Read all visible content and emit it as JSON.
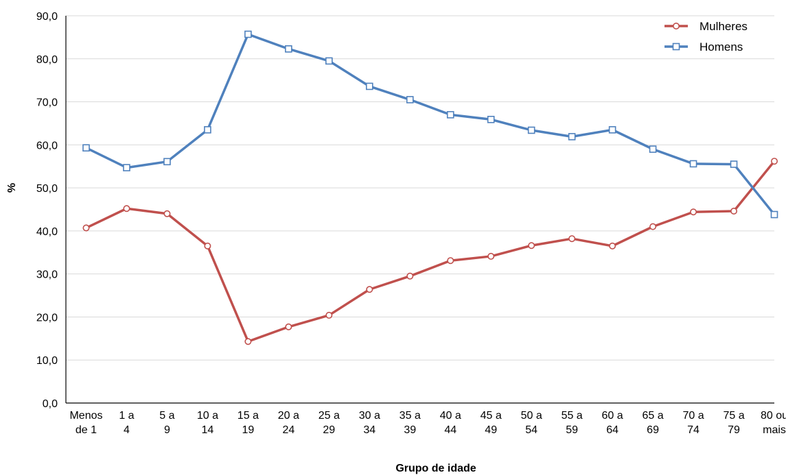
{
  "chart_data": {
    "type": "line",
    "title": "",
    "xlabel": "Grupo de idade",
    "ylabel": "%",
    "ylim": [
      0,
      90
    ],
    "yticks": [
      "0,0",
      "10,0",
      "20,0",
      "30,0",
      "40,0",
      "50,0",
      "60,0",
      "70,0",
      "80,0",
      "90,0"
    ],
    "grid": "horizontal",
    "legend_position": "top-right",
    "categories": [
      [
        "Menos",
        "de 1"
      ],
      [
        "1 a",
        "4"
      ],
      [
        "5 a",
        "9"
      ],
      [
        "10 a",
        "14"
      ],
      [
        "15 a",
        "19"
      ],
      [
        "20 a",
        "24"
      ],
      [
        "25 a",
        "29"
      ],
      [
        "30 a",
        "34"
      ],
      [
        "35 a",
        "39"
      ],
      [
        "40 a",
        "44"
      ],
      [
        "45 a",
        "49"
      ],
      [
        "50 a",
        "54"
      ],
      [
        "55 a",
        "59"
      ],
      [
        "60 a",
        "64"
      ],
      [
        "65 a",
        "69"
      ],
      [
        "70 a",
        "74"
      ],
      [
        "75 a",
        "79"
      ],
      [
        "80 ou",
        "mais"
      ]
    ],
    "series": [
      {
        "name": "Mulheres",
        "color": "#c0504d",
        "marker": "circle",
        "values": [
          40.7,
          45.2,
          44.0,
          36.5,
          14.3,
          17.7,
          20.4,
          26.4,
          29.5,
          33.1,
          34.1,
          36.6,
          38.2,
          36.5,
          41.0,
          44.4,
          44.6,
          56.2
        ]
      },
      {
        "name": "Homens",
        "color": "#4f81bd",
        "marker": "square",
        "values": [
          59.3,
          54.7,
          56.1,
          63.5,
          85.7,
          82.3,
          79.5,
          73.6,
          70.5,
          67.0,
          65.9,
          63.4,
          61.9,
          63.5,
          59.0,
          55.6,
          55.5,
          43.8
        ]
      }
    ]
  }
}
